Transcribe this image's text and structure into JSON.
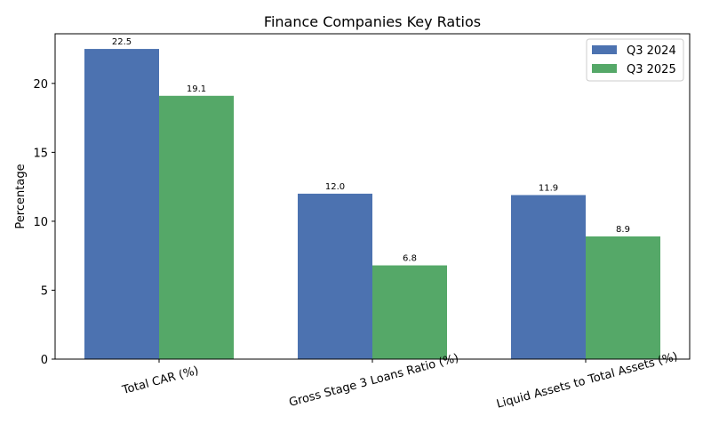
{
  "chart_data": {
    "type": "bar",
    "title": "Finance Companies Key Ratios",
    "xlabel": "",
    "ylabel": "Percentage",
    "categories": [
      "Total CAR (%)",
      "Gross Stage 3 Loans Ratio (%)",
      "Liquid Assets to Total Assets (%)"
    ],
    "series": [
      {
        "name": "Q3 2024",
        "color": "#4c72b0",
        "values": [
          22.5,
          12.0,
          11.9
        ],
        "labels": [
          "22.5",
          "12.0",
          "11.9"
        ]
      },
      {
        "name": "Q3 2025",
        "color": "#55a868",
        "values": [
          19.1,
          6.8,
          8.9
        ],
        "labels": [
          "19.1",
          "6.8",
          "8.9"
        ]
      }
    ],
    "ylim": [
      0,
      23.6
    ],
    "yticks": [
      0,
      5,
      10,
      15,
      20
    ],
    "ytick_labels": [
      "0",
      "5",
      "10",
      "15",
      "20"
    ],
    "bar_width": 0.35,
    "xlim": [
      -0.4875,
      2.4875
    ],
    "grid": false,
    "legend_position": "top-right"
  }
}
